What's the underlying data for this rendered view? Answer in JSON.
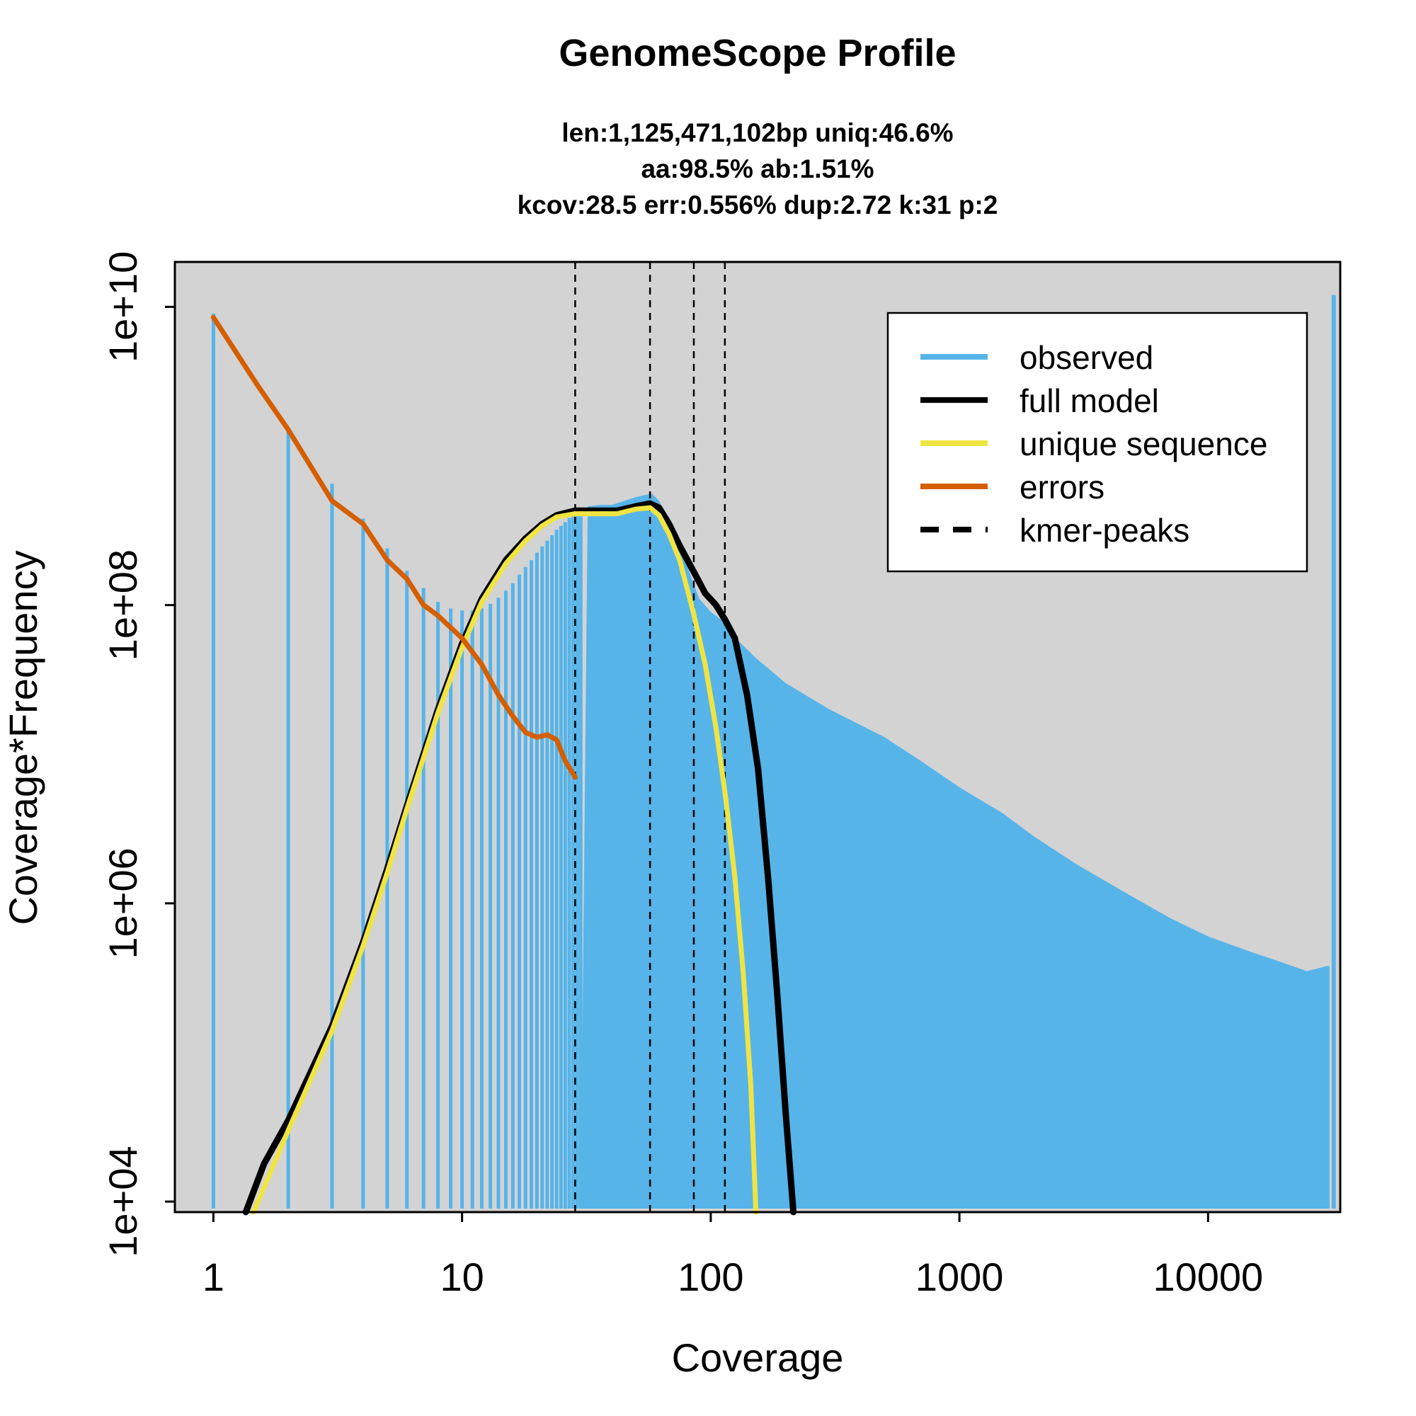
{
  "chart_data": {
    "type": "line",
    "title": "GenomeScope Profile",
    "subtitle_lines": [
      "len:1,125,471,102bp uniq:46.6%",
      "aa:98.5% ab:1.51%",
      "kcov:28.5 err:0.556%  dup:2.72  k:31 p:2"
    ],
    "xlabel": "Coverage",
    "ylabel": "Coverage*Frequency",
    "x_scale": "log",
    "y_scale": "log",
    "xlim": [
      0.7,
      34000
    ],
    "ylim": [
      8500,
      20000000000
    ],
    "x_ticks": [
      {
        "value": 1,
        "label": "1"
      },
      {
        "value": 10,
        "label": "10"
      },
      {
        "value": 100,
        "label": "100"
      },
      {
        "value": 1000,
        "label": "1000"
      },
      {
        "value": 10000,
        "label": "10000"
      }
    ],
    "y_ticks": [
      {
        "value": 10000,
        "label": "1e+04"
      },
      {
        "value": 1000000,
        "label": "1e+06"
      },
      {
        "value": 100000000,
        "label": "1e+08"
      },
      {
        "value": 10000000000,
        "label": "1e+10"
      }
    ],
    "background_color": "#d3d3d3",
    "legend_position": "top-right",
    "legend": [
      {
        "label": "observed",
        "color": "#56b4e9",
        "style": "solid"
      },
      {
        "label": "full model",
        "color": "#000000",
        "style": "solid"
      },
      {
        "label": "unique sequence",
        "color": "#f0e442",
        "style": "solid"
      },
      {
        "label": "errors",
        "color": "#d55e00",
        "style": "solid"
      },
      {
        "label": "kmer-peaks",
        "color": "#000000",
        "style": "dashed"
      }
    ],
    "kmer_peaks": [
      28.5,
      57,
      85.5,
      114
    ],
    "series": [
      {
        "name": "observed",
        "color": "#56b4e9",
        "kind": "histogram",
        "points": [
          [
            1,
            9000000000
          ],
          [
            2,
            1500000000
          ],
          [
            3,
            650000000
          ],
          [
            4,
            380000000
          ],
          [
            5,
            240000000
          ],
          [
            6,
            170000000
          ],
          [
            7,
            130000000
          ],
          [
            8,
            105000000
          ],
          [
            9,
            95000000
          ],
          [
            10,
            92000000
          ],
          [
            11,
            92000000
          ],
          [
            12,
            95000000
          ],
          [
            13,
            102000000
          ],
          [
            14,
            112000000
          ],
          [
            15,
            125000000
          ],
          [
            16,
            140000000
          ],
          [
            17,
            160000000
          ],
          [
            18,
            180000000
          ],
          [
            19,
            200000000
          ],
          [
            20,
            225000000
          ],
          [
            22,
            270000000
          ],
          [
            24,
            320000000
          ],
          [
            26,
            360000000
          ],
          [
            28.5,
            420000000
          ],
          [
            32,
            460000000
          ],
          [
            36,
            470000000
          ],
          [
            40,
            470000000
          ],
          [
            45,
            500000000
          ],
          [
            50,
            530000000
          ],
          [
            55,
            550000000
          ],
          [
            58,
            560000000
          ],
          [
            62,
            500000000
          ],
          [
            66,
            400000000
          ],
          [
            70,
            320000000
          ],
          [
            75,
            250000000
          ],
          [
            80,
            190000000
          ],
          [
            85,
            140000000
          ],
          [
            90,
            110000000
          ],
          [
            100,
            90000000
          ],
          [
            110,
            80000000
          ],
          [
            120,
            65000000
          ],
          [
            150,
            45000000
          ],
          [
            200,
            30000000
          ],
          [
            300,
            20000000
          ],
          [
            500,
            13000000
          ],
          [
            700,
            9000000
          ],
          [
            1000,
            6000000
          ],
          [
            1500,
            4000000
          ],
          [
            2000,
            2800000
          ],
          [
            3000,
            1800000
          ],
          [
            5000,
            1100000
          ],
          [
            7000,
            800000
          ],
          [
            10000,
            600000
          ],
          [
            15000,
            470000
          ],
          [
            20000,
            400000
          ],
          [
            25000,
            350000
          ],
          [
            30000,
            380000
          ],
          [
            32000,
            12000000000
          ]
        ]
      },
      {
        "name": "full model",
        "color": "#000000",
        "kind": "line",
        "points": [
          [
            1.35,
            8500
          ],
          [
            1.6,
            18000
          ],
          [
            2,
            35000
          ],
          [
            3,
            150000
          ],
          [
            4,
            550000
          ],
          [
            5,
            1700000
          ],
          [
            6,
            4500000
          ],
          [
            7,
            10000000
          ],
          [
            8,
            20000000
          ],
          [
            10,
            55000000
          ],
          [
            12,
            110000000
          ],
          [
            15,
            200000000
          ],
          [
            18,
            280000000
          ],
          [
            21,
            350000000
          ],
          [
            24,
            400000000
          ],
          [
            28.5,
            430000000
          ],
          [
            35,
            430000000
          ],
          [
            42,
            430000000
          ],
          [
            50,
            460000000
          ],
          [
            57,
            480000000
          ],
          [
            62,
            450000000
          ],
          [
            68,
            350000000
          ],
          [
            75,
            250000000
          ],
          [
            85,
            170000000
          ],
          [
            95,
            120000000
          ],
          [
            105,
            100000000
          ],
          [
            114,
            80000000
          ],
          [
            125,
            60000000
          ],
          [
            140,
            25000000
          ],
          [
            155,
            8000000
          ],
          [
            170,
            1500000
          ],
          [
            185,
            250000
          ],
          [
            200,
            40000
          ],
          [
            215,
            8500
          ]
        ]
      },
      {
        "name": "unique sequence",
        "color": "#f0e442",
        "kind": "line",
        "points": [
          [
            1.45,
            8500
          ],
          [
            2,
            30000
          ],
          [
            3,
            140000
          ],
          [
            4,
            520000
          ],
          [
            5,
            1600000
          ],
          [
            6,
            4300000
          ],
          [
            7,
            9500000
          ],
          [
            8,
            19000000
          ],
          [
            10,
            52000000
          ],
          [
            12,
            105000000
          ],
          [
            15,
            190000000
          ],
          [
            18,
            270000000
          ],
          [
            21,
            340000000
          ],
          [
            24,
            390000000
          ],
          [
            28.5,
            410000000
          ],
          [
            35,
            410000000
          ],
          [
            42,
            410000000
          ],
          [
            50,
            440000000
          ],
          [
            57,
            450000000
          ],
          [
            62,
            400000000
          ],
          [
            68,
            300000000
          ],
          [
            75,
            200000000
          ],
          [
            85,
            90000000
          ],
          [
            95,
            40000000
          ],
          [
            105,
            15000000
          ],
          [
            115,
            5000000
          ],
          [
            125,
            1500000
          ],
          [
            135,
            350000
          ],
          [
            145,
            60000
          ],
          [
            152,
            8500
          ]
        ]
      },
      {
        "name": "errors",
        "color": "#d55e00",
        "kind": "line",
        "points": [
          [
            1,
            8500000000
          ],
          [
            1.5,
            3000000000
          ],
          [
            2,
            1500000000
          ],
          [
            3,
            500000000
          ],
          [
            4,
            350000000
          ],
          [
            5,
            200000000
          ],
          [
            6,
            150000000
          ],
          [
            7,
            100000000
          ],
          [
            8,
            85000000
          ],
          [
            10,
            60000000
          ],
          [
            12,
            40000000
          ],
          [
            14,
            25000000
          ],
          [
            16,
            18000000
          ],
          [
            18,
            14000000
          ],
          [
            20,
            13000000
          ],
          [
            22,
            13500000
          ],
          [
            24,
            12500000
          ],
          [
            26,
            9000000
          ],
          [
            28.5,
            7000000
          ]
        ]
      }
    ]
  }
}
